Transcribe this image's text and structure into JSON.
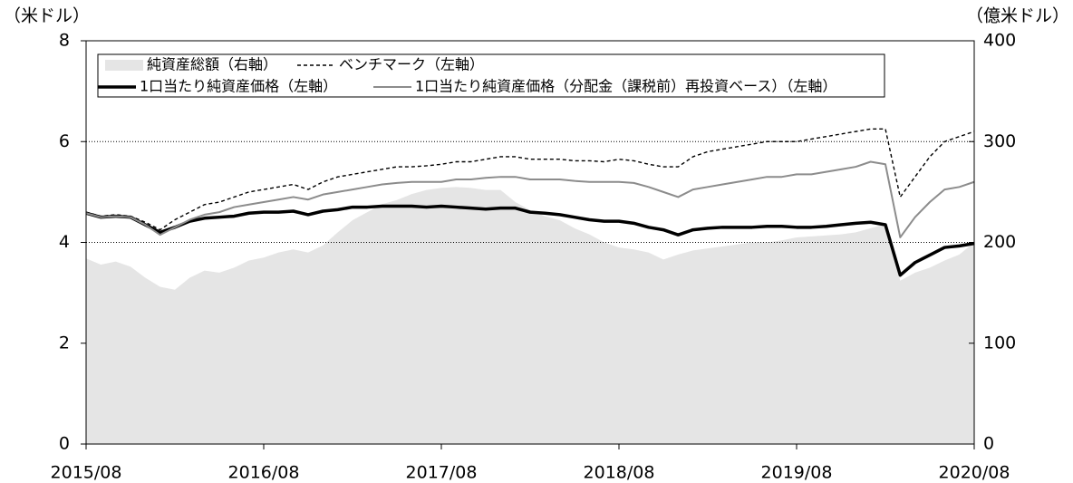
{
  "chart_data": {
    "type": "line",
    "y_label": "（米ドル）",
    "y2_label": "（億米ドル）",
    "categories": [
      "2015/08",
      null,
      null,
      null,
      null,
      null,
      null,
      null,
      null,
      null,
      null,
      null,
      "2016/08",
      null,
      null,
      null,
      null,
      null,
      null,
      null,
      null,
      null,
      null,
      null,
      "2017/08",
      null,
      null,
      null,
      null,
      null,
      null,
      null,
      null,
      null,
      null,
      null,
      "2018/08",
      null,
      null,
      null,
      null,
      null,
      null,
      null,
      null,
      null,
      null,
      null,
      "2019/08",
      null,
      null,
      null,
      null,
      null,
      null,
      null,
      null,
      null,
      null,
      null,
      "2020/08"
    ],
    "ylim": [
      0,
      8
    ],
    "yticks": [
      0,
      2,
      4,
      6,
      8
    ],
    "y2lim": [
      0,
      400
    ],
    "y2ticks": [
      0,
      100,
      200,
      300,
      400
    ],
    "hlines": [
      4,
      6
    ],
    "series": [
      {
        "name": "純資産総額（右軸）",
        "color": "#e5e5e5",
        "kind": "area",
        "axis": "y2",
        "values": [
          184,
          178,
          181,
          176,
          165,
          156,
          153,
          165,
          172,
          170,
          175,
          182,
          185,
          190,
          193,
          190,
          197,
          210,
          222,
          230,
          238,
          242,
          248,
          252,
          254,
          255,
          254,
          252,
          252,
          240,
          232,
          226,
          222,
          214,
          208,
          200,
          195,
          193,
          190,
          183,
          188,
          192,
          194,
          196,
          198,
          200,
          200,
          202,
          205,
          206,
          207,
          208,
          210,
          214,
          218,
          162,
          170,
          175,
          182,
          188,
          200
        ]
      },
      {
        "name": "ベンチマーク（左軸）",
        "color": "#000000",
        "kind": "dashed",
        "values": [
          4.6,
          4.52,
          4.55,
          4.52,
          4.4,
          4.25,
          4.45,
          4.6,
          4.75,
          4.8,
          4.9,
          5.0,
          5.05,
          5.1,
          5.15,
          5.05,
          5.2,
          5.3,
          5.35,
          5.4,
          5.45,
          5.5,
          5.5,
          5.52,
          5.55,
          5.6,
          5.6,
          5.65,
          5.7,
          5.7,
          5.65,
          5.65,
          5.65,
          5.62,
          5.62,
          5.6,
          5.65,
          5.62,
          5.55,
          5.5,
          5.5,
          5.7,
          5.8,
          5.85,
          5.9,
          5.95,
          6.0,
          6.0,
          6.0,
          6.05,
          6.1,
          6.15,
          6.2,
          6.25,
          6.25,
          4.9,
          5.3,
          5.7,
          6.0,
          6.1,
          6.2
        ]
      },
      {
        "name": "1口当たり純資産価格（左軸）",
        "color": "#000000",
        "kind": "thick",
        "values": [
          4.58,
          4.5,
          4.52,
          4.5,
          4.35,
          4.2,
          4.3,
          4.42,
          4.48,
          4.5,
          4.52,
          4.58,
          4.6,
          4.6,
          4.62,
          4.55,
          4.62,
          4.65,
          4.7,
          4.7,
          4.72,
          4.72,
          4.72,
          4.7,
          4.72,
          4.7,
          4.68,
          4.66,
          4.68,
          4.68,
          4.6,
          4.58,
          4.55,
          4.5,
          4.45,
          4.42,
          4.42,
          4.38,
          4.3,
          4.25,
          4.15,
          4.25,
          4.28,
          4.3,
          4.3,
          4.3,
          4.32,
          4.32,
          4.3,
          4.3,
          4.32,
          4.35,
          4.38,
          4.4,
          4.35,
          3.35,
          3.6,
          3.75,
          3.9,
          3.93,
          3.98
        ]
      },
      {
        "name": "1口当たり純資産価格（分配金（課税前）再投資ベース）（左軸）",
        "color": "#8c8c8c",
        "kind": "line",
        "values": [
          4.58,
          4.5,
          4.52,
          4.5,
          4.35,
          4.15,
          4.3,
          4.45,
          4.55,
          4.6,
          4.7,
          4.75,
          4.8,
          4.85,
          4.9,
          4.85,
          4.95,
          5.0,
          5.05,
          5.1,
          5.15,
          5.18,
          5.2,
          5.2,
          5.2,
          5.25,
          5.25,
          5.28,
          5.3,
          5.3,
          5.25,
          5.25,
          5.25,
          5.22,
          5.2,
          5.2,
          5.2,
          5.18,
          5.1,
          5.0,
          4.9,
          5.05,
          5.1,
          5.15,
          5.2,
          5.25,
          5.3,
          5.3,
          5.35,
          5.35,
          5.4,
          5.45,
          5.5,
          5.6,
          5.55,
          4.1,
          4.5,
          4.8,
          5.05,
          5.1,
          5.2
        ]
      }
    ]
  }
}
